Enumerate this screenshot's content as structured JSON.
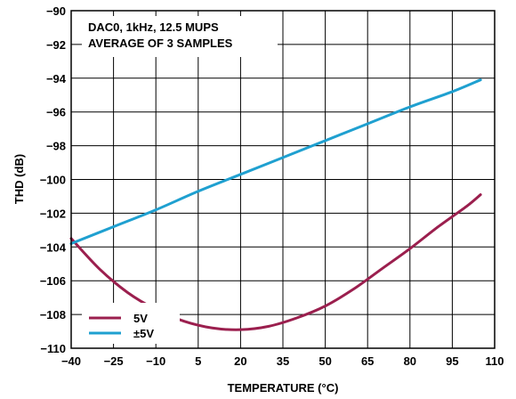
{
  "chart_data": {
    "type": "line",
    "xlabel": "TEMPERATURE (°C)",
    "ylabel": "THD (dB)",
    "xlim": [
      -40,
      110
    ],
    "ylim": [
      -110,
      -90
    ],
    "xticks": [
      -40,
      -25,
      -10,
      5,
      20,
      35,
      50,
      65,
      80,
      95,
      110
    ],
    "yticks": [
      -90,
      -92,
      -94,
      -96,
      -98,
      -100,
      -102,
      -104,
      -106,
      -108,
      -110
    ],
    "grid": true,
    "legend_position": "bottom-left",
    "annotations": [
      "DAC0, 1kHz, 12.5 MUPS",
      "AVERAGE OF 3 SAMPLES"
    ],
    "series": [
      {
        "name": "5V",
        "color": "#9b1f4e",
        "x": [
          -40,
          -30,
          -20,
          -10,
          0,
          10,
          20,
          30,
          40,
          50,
          60,
          70,
          80,
          90,
          100,
          105
        ],
        "y": [
          -103.5,
          -105.3,
          -106.7,
          -107.7,
          -108.4,
          -108.8,
          -108.9,
          -108.7,
          -108.2,
          -107.5,
          -106.5,
          -105.3,
          -104.1,
          -102.8,
          -101.6,
          -100.9
        ]
      },
      {
        "name": "±5V",
        "color": "#1fa0d0",
        "x": [
          -40,
          -25,
          -10,
          5,
          20,
          35,
          50,
          65,
          80,
          95,
          105
        ],
        "y": [
          -103.8,
          -102.8,
          -101.8,
          -100.7,
          -99.7,
          -98.7,
          -97.7,
          -96.7,
          -95.7,
          -94.8,
          -94.1
        ]
      }
    ]
  }
}
